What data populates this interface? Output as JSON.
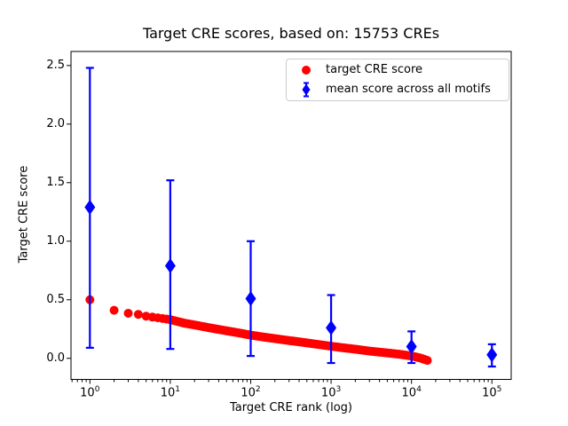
{
  "title": "Target CRE scores, based on: 15753 CREs",
  "axes": {
    "xlabel": "Target CRE rank (log)",
    "ylabel": "Target CRE score",
    "x_scale": "log",
    "x_tick_base": "10",
    "x_tick_exponents": [
      0,
      1,
      2,
      3,
      4,
      5
    ],
    "y_ticks": [
      "0.0",
      "0.5",
      "1.0",
      "1.5",
      "2.0",
      "2.5"
    ],
    "xlim_log10": [
      -0.235,
      5.24
    ],
    "ylim": [
      -0.18,
      2.62
    ]
  },
  "legend": {
    "items": [
      {
        "label": "target CRE score",
        "marker": "circle-icon",
        "color": "#ff0000"
      },
      {
        "label": "mean score across all motifs",
        "marker": "diamond-errorbar-icon",
        "color": "#0000ff"
      }
    ]
  },
  "colors": {
    "red_series": "#ff0000",
    "blue_series": "#0000ff",
    "text": "#000000",
    "spines": "#000000",
    "legend_border": "#cccccc",
    "background": "#ffffff"
  },
  "chart_data": {
    "type": "scatter",
    "title": "Target CRE scores, based on: 15753 CREs",
    "xlabel": "Target CRE rank (log)",
    "ylabel": "Target CRE score",
    "x_scale": "log",
    "xlim": [
      0.58,
      174000
    ],
    "ylim": [
      -0.18,
      2.62
    ],
    "grid": false,
    "legend_position": "upper right",
    "n_cres": 15753,
    "series": [
      {
        "name": "target CRE score",
        "marker": "circle",
        "color": "#ff0000",
        "marker_radius_px": 5,
        "n_points_total": 15753,
        "note": "dense decreasing curve over ranks 1..15753; anchor points (rank, score) below, interpolate linearly in log10(rank)",
        "anchor_points": [
          [
            1,
            0.5
          ],
          [
            2,
            0.41
          ],
          [
            3,
            0.385
          ],
          [
            4,
            0.375
          ],
          [
            5,
            0.36
          ],
          [
            6,
            0.352
          ],
          [
            7,
            0.346
          ],
          [
            8,
            0.34
          ],
          [
            9,
            0.335
          ],
          [
            10,
            0.33
          ],
          [
            15,
            0.3
          ],
          [
            20,
            0.285
          ],
          [
            30,
            0.262
          ],
          [
            50,
            0.235
          ],
          [
            70,
            0.218
          ],
          [
            100,
            0.198
          ],
          [
            150,
            0.18
          ],
          [
            200,
            0.168
          ],
          [
            300,
            0.152
          ],
          [
            500,
            0.132
          ],
          [
            700,
            0.118
          ],
          [
            1000,
            0.103
          ],
          [
            1500,
            0.088
          ],
          [
            2000,
            0.078
          ],
          [
            3000,
            0.062
          ],
          [
            5000,
            0.046
          ],
          [
            7000,
            0.035
          ],
          [
            10000,
            0.02
          ],
          [
            13000,
            0.002
          ],
          [
            15753,
            -0.018
          ]
        ]
      },
      {
        "name": "mean score across all motifs",
        "marker": "diamond",
        "color": "#0000ff",
        "error_bars": true,
        "points": [
          {
            "x": 1,
            "mean": 1.29,
            "ymin": 0.09,
            "ymax": 2.48
          },
          {
            "x": 10,
            "mean": 0.79,
            "ymin": 0.08,
            "ymax": 1.52
          },
          {
            "x": 100,
            "mean": 0.51,
            "ymin": 0.02,
            "ymax": 1.0
          },
          {
            "x": 1000,
            "mean": 0.26,
            "ymin": -0.04,
            "ymax": 0.54
          },
          {
            "x": 10000,
            "mean": 0.1,
            "ymin": -0.04,
            "ymax": 0.23
          },
          {
            "x": 100000,
            "mean": 0.03,
            "ymin": -0.07,
            "ymax": 0.12
          }
        ]
      }
    ]
  }
}
